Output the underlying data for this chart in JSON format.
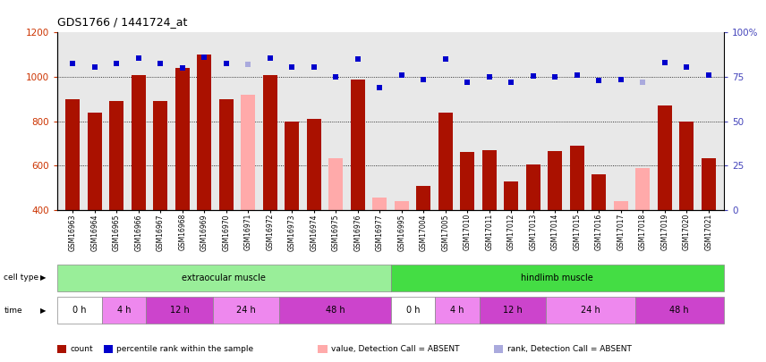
{
  "title": "GDS1766 / 1441724_at",
  "samples": [
    "GSM16963",
    "GSM16964",
    "GSM16965",
    "GSM16966",
    "GSM16967",
    "GSM16968",
    "GSM16969",
    "GSM16970",
    "GSM16971",
    "GSM16972",
    "GSM16973",
    "GSM16974",
    "GSM16975",
    "GSM16976",
    "GSM16977",
    "GSM16995",
    "GSM17004",
    "GSM17005",
    "GSM17010",
    "GSM17011",
    "GSM17012",
    "GSM17013",
    "GSM17014",
    "GSM17015",
    "GSM17016",
    "GSM17017",
    "GSM17018",
    "GSM17019",
    "GSM17020",
    "GSM17021"
  ],
  "count_values": [
    900,
    840,
    890,
    1010,
    890,
    1040,
    1100,
    900,
    920,
    1010,
    800,
    810,
    635,
    990,
    455,
    440,
    510,
    840,
    660,
    670,
    530,
    605,
    665,
    690,
    560,
    440,
    590,
    870,
    800,
    635
  ],
  "count_absent": [
    false,
    false,
    false,
    false,
    false,
    false,
    false,
    false,
    true,
    false,
    false,
    false,
    true,
    false,
    true,
    true,
    false,
    false,
    false,
    false,
    false,
    false,
    false,
    false,
    false,
    true,
    true,
    false,
    false,
    false
  ],
  "percentile_values": [
    1060,
    1045,
    1060,
    1085,
    1060,
    1040,
    1090,
    1060,
    1055,
    1085,
    1045,
    1045,
    1000,
    1080,
    950,
    1010,
    990,
    1080,
    975,
    1000,
    975,
    1005,
    1000,
    1010,
    985,
    990,
    975,
    1065,
    1045,
    1010
  ],
  "percentile_absent": [
    false,
    false,
    false,
    false,
    false,
    false,
    false,
    false,
    true,
    false,
    false,
    false,
    false,
    false,
    false,
    false,
    false,
    false,
    false,
    false,
    false,
    false,
    false,
    false,
    false,
    false,
    true,
    false,
    false,
    false
  ],
  "ylim_left": [
    400,
    1200
  ],
  "ylim_right": [
    0,
    100
  ],
  "yticks_left": [
    400,
    600,
    800,
    1000,
    1200
  ],
  "yticks_right": [
    0,
    25,
    50,
    75,
    100
  ],
  "bar_color_present": "#aa1100",
  "bar_color_absent": "#ffaaaa",
  "dot_color_present": "#0000cc",
  "dot_color_absent": "#aaaadd",
  "plot_bg_color": "#e8e8e8",
  "cell_type_groups": [
    {
      "label": "extraocular muscle",
      "start": 0,
      "end": 14,
      "color": "#99ee99"
    },
    {
      "label": "hindlimb muscle",
      "start": 15,
      "end": 29,
      "color": "#44dd44"
    }
  ],
  "time_groups": [
    {
      "label": "0 h",
      "start": 0,
      "end": 1,
      "color": "#ffffff"
    },
    {
      "label": "4 h",
      "start": 2,
      "end": 3,
      "color": "#ee88ee"
    },
    {
      "label": "12 h",
      "start": 4,
      "end": 6,
      "color": "#cc44cc"
    },
    {
      "label": "24 h",
      "start": 7,
      "end": 9,
      "color": "#ee88ee"
    },
    {
      "label": "48 h",
      "start": 10,
      "end": 14,
      "color": "#cc44cc"
    },
    {
      "label": "0 h",
      "start": 15,
      "end": 16,
      "color": "#ffffff"
    },
    {
      "label": "4 h",
      "start": 17,
      "end": 18,
      "color": "#ee88ee"
    },
    {
      "label": "12 h",
      "start": 19,
      "end": 21,
      "color": "#cc44cc"
    },
    {
      "label": "24 h",
      "start": 22,
      "end": 25,
      "color": "#ee88ee"
    },
    {
      "label": "48 h",
      "start": 26,
      "end": 29,
      "color": "#cc44cc"
    }
  ],
  "legend_items": [
    {
      "label": "count",
      "color": "#aa1100"
    },
    {
      "label": "percentile rank within the sample",
      "color": "#0000cc"
    },
    {
      "label": "value, Detection Call = ABSENT",
      "color": "#ffaaaa"
    },
    {
      "label": "rank, Detection Call = ABSENT",
      "color": "#aaaadd"
    }
  ]
}
